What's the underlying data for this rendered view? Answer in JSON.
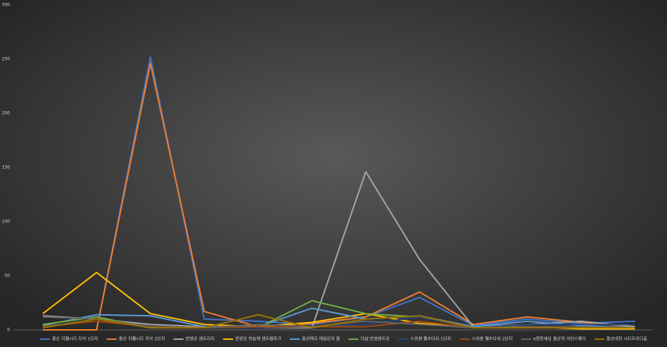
{
  "chart_data": {
    "type": "line",
    "categories": [
      null,
      null,
      null,
      null,
      null,
      null,
      null,
      null,
      null,
      null,
      null,
      null
    ],
    "ylim": [
      0,
      300
    ],
    "yticks": [
      0,
      50,
      100,
      150,
      200,
      250,
      300
    ],
    "grid": false,
    "legend": "bottom",
    "series": [
      {
        "name": "울산 지웰시티 자이 1단지",
        "color": "#4472c4",
        "values": [
          0,
          0,
          252,
          10,
          8,
          5,
          12,
          30,
          4,
          10,
          6,
          8
        ]
      },
      {
        "name": "울산 지웰시티 자이 2단지",
        "color": "#ed7d31",
        "values": [
          0,
          0,
          246,
          17,
          3,
          6,
          12,
          35,
          5,
          12,
          7,
          3
        ]
      },
      {
        "name": "번영로 센트리지",
        "color": "#a5a5a5",
        "values": [
          13,
          10,
          5,
          3,
          2,
          2,
          146,
          65,
          3,
          5,
          8,
          3
        ]
      },
      {
        "name": "번영로 하늘채 센트럴파크",
        "color": "#ffc000",
        "values": [
          15,
          53,
          15,
          5,
          3,
          7,
          15,
          6,
          3,
          3,
          1,
          1
        ]
      },
      {
        "name": "중산매곡 에일린의 뜰",
        "color": "#5b9bd5",
        "values": [
          4,
          14,
          13,
          3,
          3,
          20,
          10,
          13,
          3,
          8,
          4,
          2
        ]
      },
      {
        "name": "더샵 번영센트로",
        "color": "#70ad47",
        "values": [
          5,
          12,
          2,
          2,
          2,
          27,
          15,
          12,
          2,
          3,
          2,
          2
        ]
      },
      {
        "name": "스위첸 웰츠타워 1단지",
        "color": "#264478",
        "values": [
          3,
          10,
          3,
          2,
          2,
          3,
          5,
          12,
          2,
          5,
          5,
          5
        ]
      },
      {
        "name": "스위첸 웰츠타워 2단지",
        "color": "#9e480e",
        "values": [
          3,
          8,
          3,
          2,
          3,
          3,
          3,
          8,
          2,
          2,
          2,
          2
        ]
      },
      {
        "name": "e편한세상 울산역 어반스퀘어",
        "color": "#636363",
        "values": [
          12,
          10,
          3,
          2,
          5,
          3,
          8,
          5,
          2,
          3,
          3,
          2
        ]
      },
      {
        "name": "울산대현 시티프라디움",
        "color": "#997300",
        "values": [
          2,
          10,
          2,
          2,
          14,
          2,
          10,
          13,
          2,
          2,
          2,
          2
        ]
      }
    ]
  }
}
